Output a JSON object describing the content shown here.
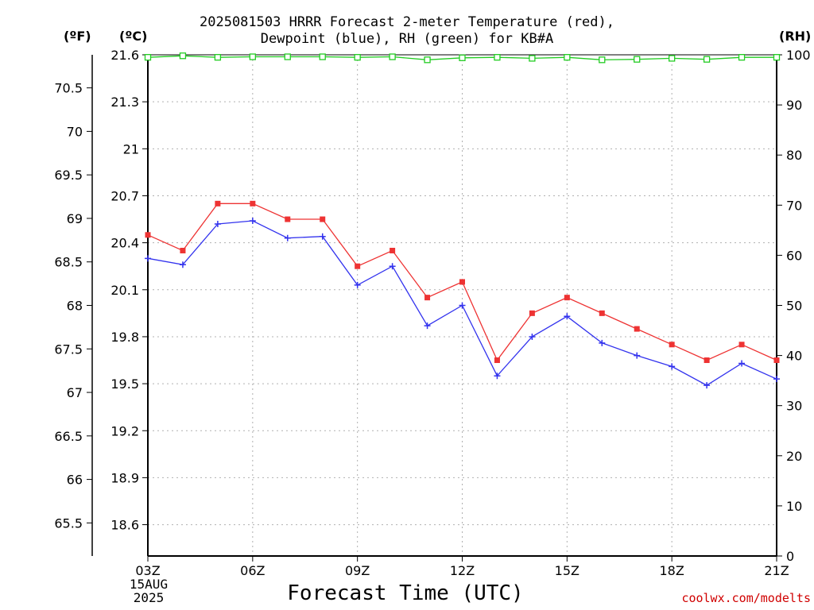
{
  "chart_data": {
    "type": "line",
    "title_line1": "2025081503 HRRR Forecast 2-meter Temperature (red),",
    "title_line2": "Dewpoint (blue), RH (green) for KB#A",
    "xlabel": "Forecast Time (UTC)",
    "credit": "coolwx.com/modelts",
    "units": {
      "fahrenheit": "(ºF)",
      "celsius": "(ºC)",
      "rh": "(RH)"
    },
    "date_label": [
      "15AUG",
      "2025"
    ],
    "x_hours": [
      3,
      4,
      5,
      6,
      7,
      8,
      9,
      10,
      11,
      12,
      13,
      14,
      15,
      16,
      17,
      18,
      19,
      20,
      21
    ],
    "x_ticks": [
      {
        "hour": 3,
        "label": "03Z"
      },
      {
        "hour": 6,
        "label": "06Z"
      },
      {
        "hour": 9,
        "label": "09Z"
      },
      {
        "hour": 12,
        "label": "12Z"
      },
      {
        "hour": 15,
        "label": "15Z"
      },
      {
        "hour": 18,
        "label": "18Z"
      },
      {
        "hour": 21,
        "label": "21Z"
      }
    ],
    "xlim": [
      3,
      21
    ],
    "celsius_axis": {
      "ylim": [
        18.4,
        21.6
      ],
      "ticks": [
        "18.6",
        "18.9",
        "19.2",
        "19.5",
        "19.8",
        "20.1",
        "20.4",
        "20.7",
        "21",
        "21.3",
        "21.6"
      ]
    },
    "fahrenheit_axis": {
      "ticks": [
        "65.5",
        "66",
        "66.5",
        "67",
        "67.5",
        "68",
        "68.5",
        "69",
        "69.5",
        "70",
        "70.5"
      ]
    },
    "rh_axis": {
      "ylim": [
        0,
        100
      ],
      "ticks": [
        "0",
        "10",
        "20",
        "30",
        "40",
        "50",
        "60",
        "70",
        "80",
        "90",
        "100"
      ]
    },
    "grid": true,
    "series": [
      {
        "name": "Temperature",
        "color": "#ee3333",
        "marker": "square",
        "axis": "celsius",
        "values": [
          20.45,
          20.35,
          20.65,
          20.65,
          20.55,
          20.55,
          20.25,
          20.35,
          20.05,
          20.15,
          19.65,
          19.95,
          20.05,
          19.95,
          19.85,
          19.75,
          19.65,
          19.75,
          19.65
        ]
      },
      {
        "name": "Dewpoint",
        "color": "#3333ee",
        "marker": "plus",
        "axis": "celsius",
        "values": [
          20.3,
          20.26,
          20.52,
          20.54,
          20.43,
          20.44,
          20.13,
          20.25,
          19.87,
          20.0,
          19.55,
          19.8,
          19.93,
          19.76,
          19.68,
          19.61,
          19.49,
          19.63,
          19.53
        ]
      },
      {
        "name": "RH",
        "color": "#22cc22",
        "marker": "open-square",
        "axis": "rh",
        "values": [
          99.5,
          99.8,
          99.5,
          99.6,
          99.6,
          99.6,
          99.5,
          99.6,
          99.0,
          99.4,
          99.5,
          99.3,
          99.5,
          99.0,
          99.1,
          99.3,
          99.1,
          99.5,
          99.5
        ]
      }
    ]
  }
}
